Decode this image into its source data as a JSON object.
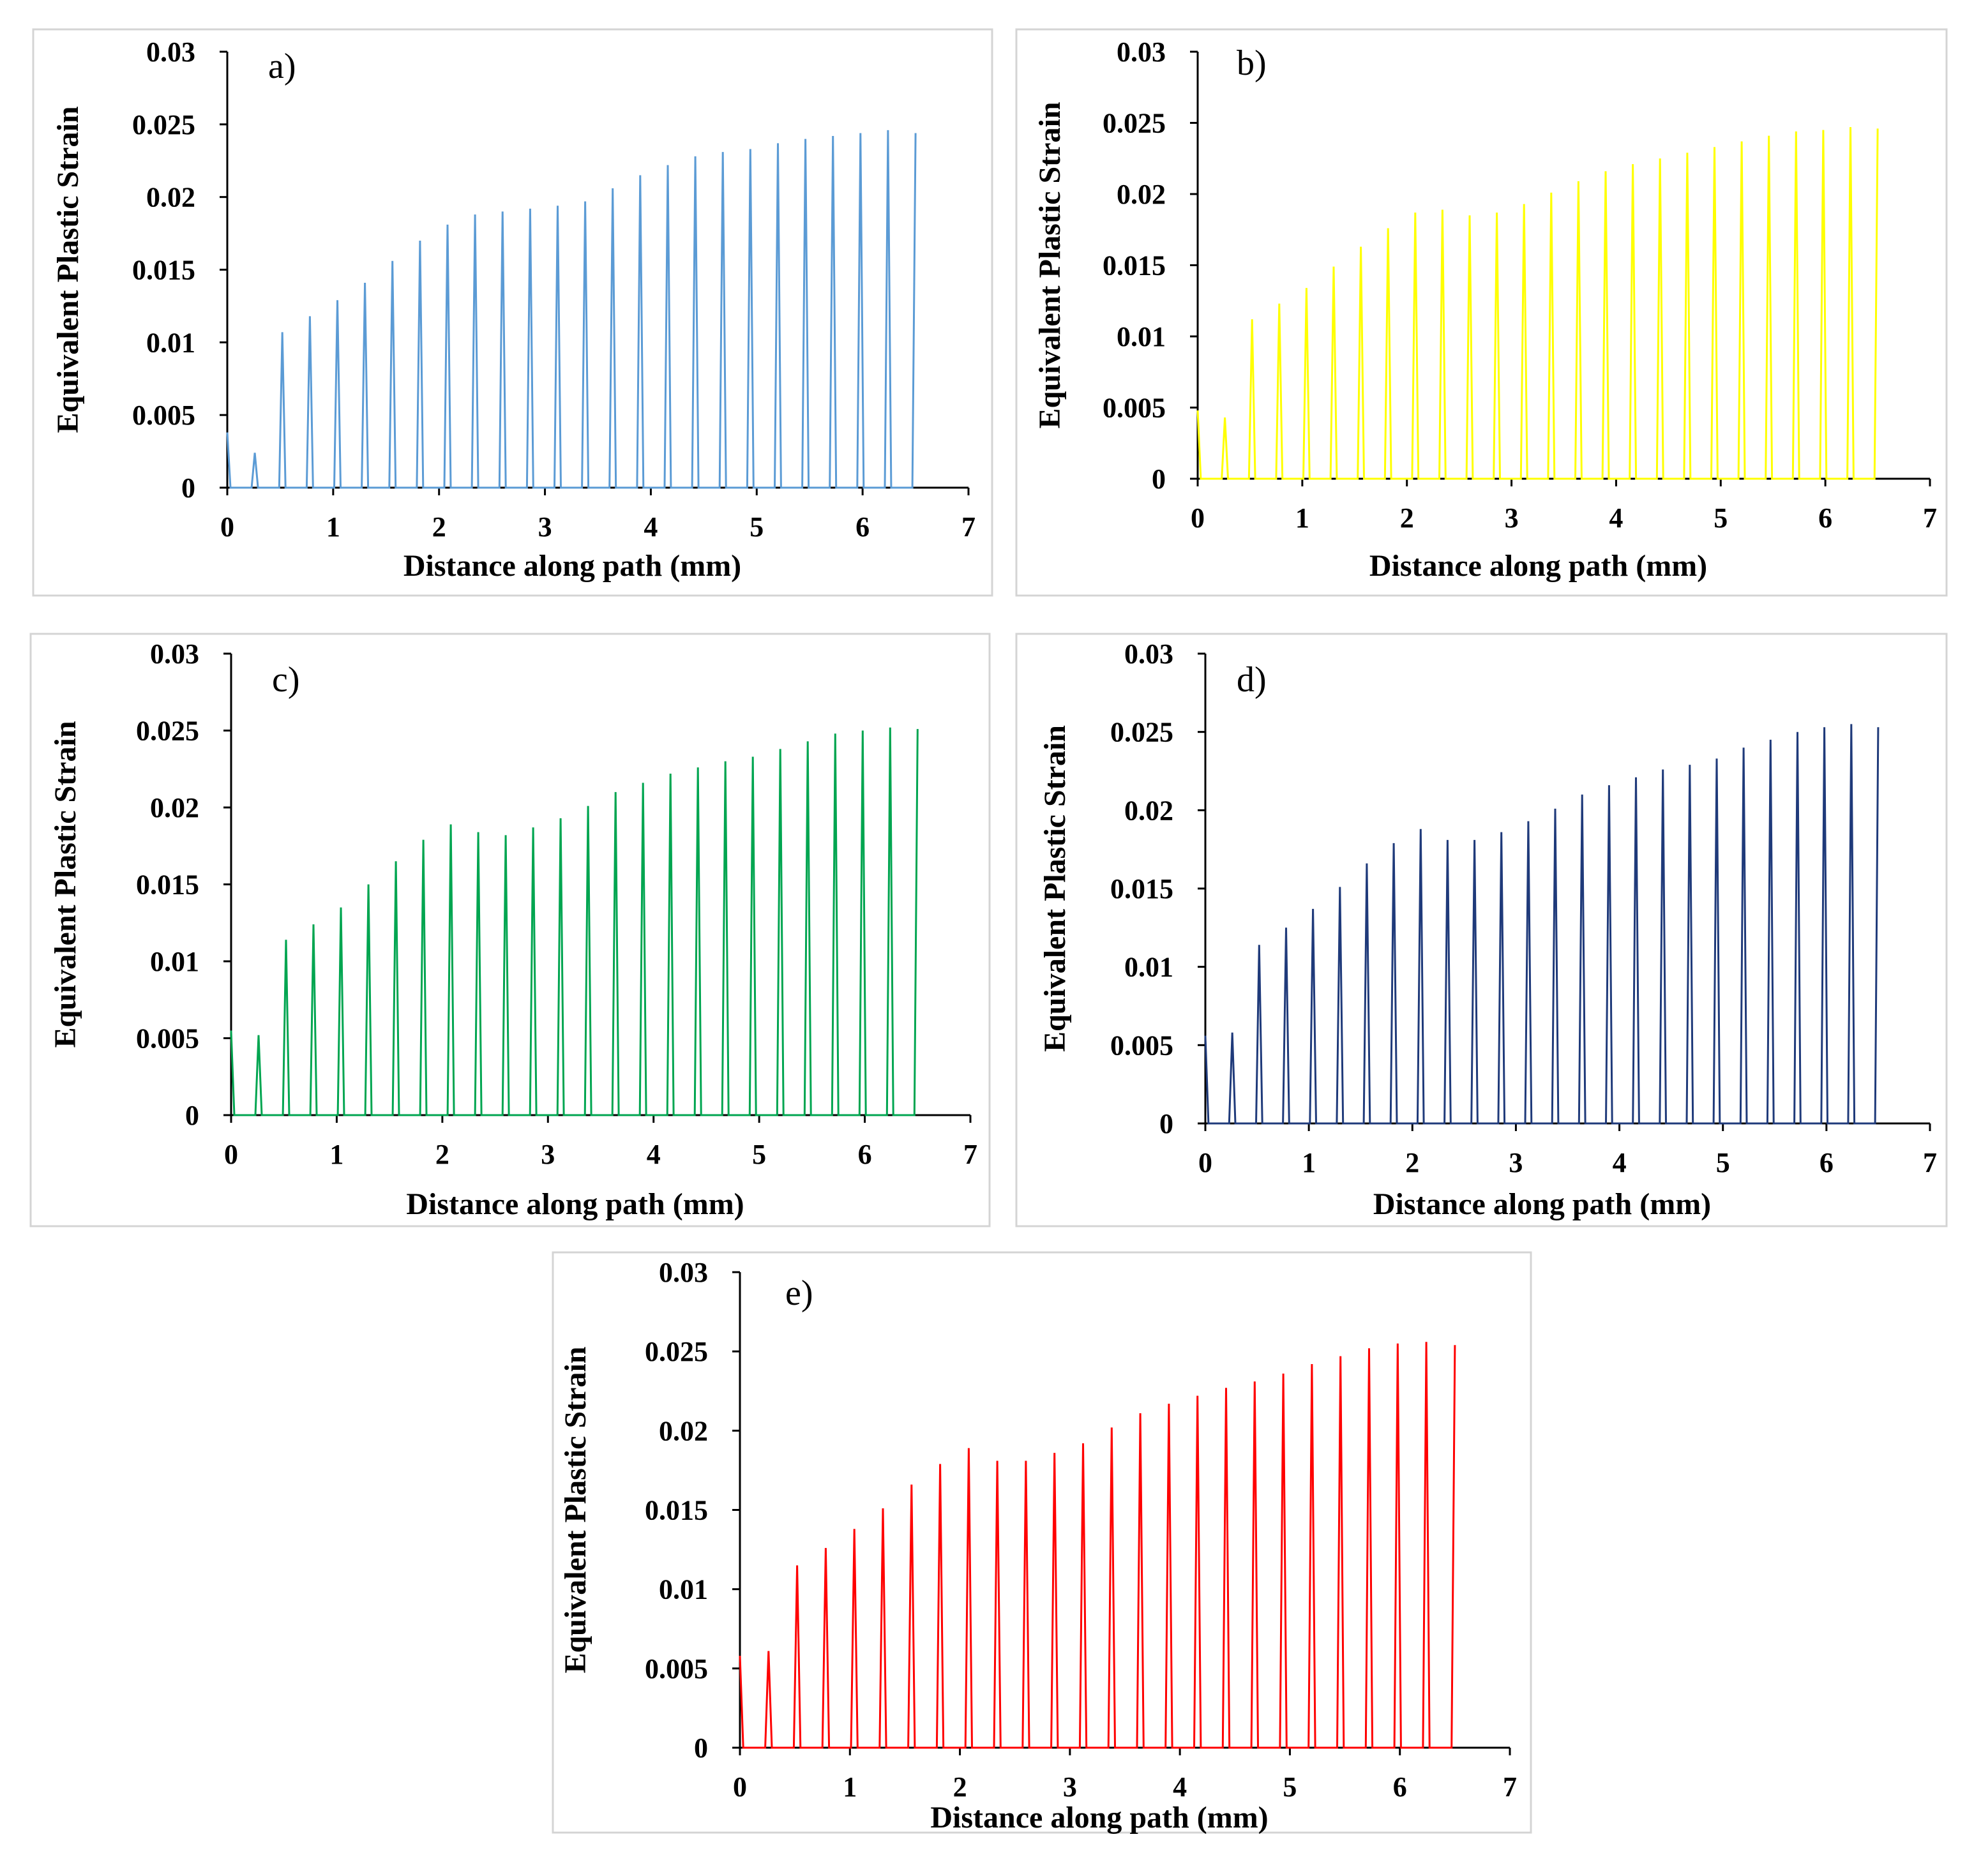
{
  "chart_data": [
    {
      "type": "line",
      "panel_label": "a)",
      "xlabel": "Distance along path (mm)",
      "ylabel": "Equivalent Plastic Strain",
      "xlim": [
        0,
        7
      ],
      "ylim": [
        0,
        0.03
      ],
      "xticks": [
        "0",
        "1",
        "2",
        "3",
        "4",
        "5",
        "6",
        "7"
      ],
      "yticks": [
        "0",
        "0.005",
        "0.01",
        "0.015",
        "0.02",
        "0.025",
        "0.03"
      ],
      "grid": false,
      "color": "#5b9bd5",
      "series": [
        {
          "x": [
            0,
            0.03,
            0.23,
            0.26,
            0.29,
            0.49,
            0.52,
            0.55,
            0.75,
            0.78,
            0.81,
            1.01,
            1.04,
            1.07,
            1.27,
            1.3,
            1.33,
            1.53,
            1.56,
            1.59,
            1.79,
            1.82,
            1.85,
            2.05,
            2.08,
            2.11,
            2.31,
            2.34,
            2.37,
            2.57,
            2.6,
            2.63,
            2.83,
            2.86,
            2.89,
            3.09,
            3.12,
            3.15,
            3.35,
            3.38,
            3.41,
            3.61,
            3.64,
            3.67,
            3.87,
            3.9,
            3.93,
            4.13,
            4.16,
            4.19,
            4.39,
            4.42,
            4.45,
            4.65,
            4.68,
            4.71,
            4.91,
            4.94,
            4.97,
            5.17,
            5.2,
            5.23,
            5.43,
            5.46,
            5.49,
            5.69,
            5.72,
            5.75,
            5.95,
            5.98,
            6.01,
            6.21,
            6.24,
            6.27,
            6.47,
            6.5
          ],
          "y": [
            0.0038,
            0,
            0,
            0.0024,
            0,
            0,
            0.0107,
            0,
            0,
            0.0118,
            0,
            0,
            0.0129,
            0,
            0,
            0.0141,
            0,
            0,
            0.0156,
            0,
            0,
            0.017,
            0,
            0,
            0.0181,
            0,
            0,
            0.0188,
            0,
            0,
            0.019,
            0,
            0,
            0.0192,
            0,
            0,
            0.0194,
            0,
            0,
            0.0197,
            0,
            0,
            0.0206,
            0,
            0,
            0.0215,
            0,
            0,
            0.0222,
            0,
            0,
            0.0228,
            0,
            0,
            0.0231,
            0,
            0,
            0.0233,
            0,
            0,
            0.0237,
            0,
            0,
            0.024,
            0,
            0,
            0.0242,
            0,
            0,
            0.0244,
            0,
            0,
            0.0246,
            0,
            0,
            0.0244
          ]
        }
      ]
    },
    {
      "type": "line",
      "panel_label": "b)",
      "xlabel": "Distance along path (mm)",
      "ylabel": "Equivalent Plastic Strain",
      "xlim": [
        0,
        7
      ],
      "ylim": [
        0,
        0.03
      ],
      "xticks": [
        "0",
        "1",
        "2",
        "3",
        "4",
        "5",
        "6",
        "7"
      ],
      "yticks": [
        "0",
        "0.005",
        "0.01",
        "0.015",
        "0.02",
        "0.025",
        "0.03"
      ],
      "grid": false,
      "color": "#ffff00",
      "series": [
        {
          "x": [
            0,
            0.03,
            0.23,
            0.26,
            0.29,
            0.49,
            0.52,
            0.55,
            0.75,
            0.78,
            0.81,
            1.01,
            1.04,
            1.07,
            1.27,
            1.3,
            1.33,
            1.53,
            1.56,
            1.59,
            1.79,
            1.82,
            1.85,
            2.05,
            2.08,
            2.11,
            2.31,
            2.34,
            2.37,
            2.57,
            2.6,
            2.63,
            2.83,
            2.86,
            2.89,
            3.09,
            3.12,
            3.15,
            3.35,
            3.38,
            3.41,
            3.61,
            3.64,
            3.67,
            3.87,
            3.9,
            3.93,
            4.13,
            4.16,
            4.19,
            4.39,
            4.42,
            4.45,
            4.65,
            4.68,
            4.71,
            4.91,
            4.94,
            4.97,
            5.17,
            5.2,
            5.23,
            5.43,
            5.46,
            5.49,
            5.69,
            5.72,
            5.75,
            5.95,
            5.98,
            6.01,
            6.21,
            6.24,
            6.27,
            6.47,
            6.5
          ],
          "y": [
            0.0048,
            0,
            0,
            0.0043,
            0,
            0,
            0.0112,
            0,
            0,
            0.0123,
            0,
            0,
            0.0134,
            0,
            0,
            0.0149,
            0,
            0,
            0.0163,
            0,
            0,
            0.0176,
            0,
            0,
            0.0187,
            0,
            0,
            0.0189,
            0,
            0,
            0.0185,
            0,
            0,
            0.0187,
            0,
            0,
            0.0193,
            0,
            0,
            0.0201,
            0,
            0,
            0.0209,
            0,
            0,
            0.0216,
            0,
            0,
            0.0221,
            0,
            0,
            0.0225,
            0,
            0,
            0.0229,
            0,
            0,
            0.0233,
            0,
            0,
            0.0237,
            0,
            0,
            0.0241,
            0,
            0,
            0.0244,
            0,
            0,
            0.0245,
            0,
            0,
            0.0247,
            0,
            0,
            0.0246
          ]
        }
      ]
    },
    {
      "type": "line",
      "panel_label": "c)",
      "xlabel": "Distance along path (mm)",
      "ylabel": "Equivalent Plastic Strain",
      "xlim": [
        0,
        7
      ],
      "ylim": [
        0,
        0.03
      ],
      "xticks": [
        "0",
        "1",
        "2",
        "3",
        "4",
        "5",
        "6",
        "7"
      ],
      "yticks": [
        "0",
        "0.005",
        "0.01",
        "0.015",
        "0.02",
        "0.025",
        "0.03"
      ],
      "grid": false,
      "color": "#00a550",
      "series": [
        {
          "x": [
            0,
            0.03,
            0.23,
            0.26,
            0.29,
            0.49,
            0.52,
            0.55,
            0.75,
            0.78,
            0.81,
            1.01,
            1.04,
            1.07,
            1.27,
            1.3,
            1.33,
            1.53,
            1.56,
            1.59,
            1.79,
            1.82,
            1.85,
            2.05,
            2.08,
            2.11,
            2.31,
            2.34,
            2.37,
            2.57,
            2.6,
            2.63,
            2.83,
            2.86,
            2.89,
            3.09,
            3.12,
            3.15,
            3.35,
            3.38,
            3.41,
            3.61,
            3.64,
            3.67,
            3.87,
            3.9,
            3.93,
            4.13,
            4.16,
            4.19,
            4.39,
            4.42,
            4.45,
            4.65,
            4.68,
            4.71,
            4.91,
            4.94,
            4.97,
            5.17,
            5.2,
            5.23,
            5.43,
            5.46,
            5.49,
            5.69,
            5.72,
            5.75,
            5.95,
            5.98,
            6.01,
            6.21,
            6.24,
            6.27,
            6.47,
            6.5
          ],
          "y": [
            0.0055,
            0,
            0,
            0.0052,
            0,
            0,
            0.0114,
            0,
            0,
            0.0124,
            0,
            0,
            0.0135,
            0,
            0,
            0.015,
            0,
            0,
            0.0165,
            0,
            0,
            0.0179,
            0,
            0,
            0.0189,
            0,
            0,
            0.0184,
            0,
            0,
            0.0182,
            0,
            0,
            0.0187,
            0,
            0,
            0.0193,
            0,
            0,
            0.0201,
            0,
            0,
            0.021,
            0,
            0,
            0.0216,
            0,
            0,
            0.0222,
            0,
            0,
            0.0226,
            0,
            0,
            0.023,
            0,
            0,
            0.0233,
            0,
            0,
            0.0238,
            0,
            0,
            0.0243,
            0,
            0,
            0.0248,
            0,
            0,
            0.025,
            0,
            0,
            0.0252,
            0,
            0,
            0.0251
          ]
        }
      ]
    },
    {
      "type": "line",
      "panel_label": "d)",
      "xlabel": "Distance along path (mm)",
      "ylabel": "Equivalent Plastic Strain",
      "xlim": [
        0,
        7
      ],
      "ylim": [
        0,
        0.03
      ],
      "xticks": [
        "0",
        "1",
        "2",
        "3",
        "4",
        "5",
        "6",
        "7"
      ],
      "yticks": [
        "0",
        "0.005",
        "0.01",
        "0.015",
        "0.02",
        "0.025",
        "0.03"
      ],
      "grid": false,
      "color": "#1f3a7a",
      "series": [
        {
          "x": [
            0,
            0.03,
            0.23,
            0.26,
            0.29,
            0.49,
            0.52,
            0.55,
            0.75,
            0.78,
            0.81,
            1.01,
            1.04,
            1.07,
            1.27,
            1.3,
            1.33,
            1.53,
            1.56,
            1.59,
            1.79,
            1.82,
            1.85,
            2.05,
            2.08,
            2.11,
            2.31,
            2.34,
            2.37,
            2.57,
            2.6,
            2.63,
            2.83,
            2.86,
            2.89,
            3.09,
            3.12,
            3.15,
            3.35,
            3.38,
            3.41,
            3.61,
            3.64,
            3.67,
            3.87,
            3.9,
            3.93,
            4.13,
            4.16,
            4.19,
            4.39,
            4.42,
            4.45,
            4.65,
            4.68,
            4.71,
            4.91,
            4.94,
            4.97,
            5.17,
            5.2,
            5.23,
            5.43,
            5.46,
            5.49,
            5.69,
            5.72,
            5.75,
            5.95,
            5.98,
            6.01,
            6.21,
            6.24,
            6.27,
            6.47,
            6.5
          ],
          "y": [
            0.0056,
            0,
            0,
            0.0058,
            0,
            0,
            0.0114,
            0,
            0,
            0.0125,
            0,
            0,
            0.0137,
            0,
            0,
            0.0151,
            0,
            0,
            0.0166,
            0,
            0,
            0.0179,
            0,
            0,
            0.0188,
            0,
            0,
            0.0181,
            0,
            0,
            0.0181,
            0,
            0,
            0.0186,
            0,
            0,
            0.0193,
            0,
            0,
            0.0201,
            0,
            0,
            0.021,
            0,
            0,
            0.0216,
            0,
            0,
            0.0221,
            0,
            0,
            0.0226,
            0,
            0,
            0.0229,
            0,
            0,
            0.0233,
            0,
            0,
            0.024,
            0,
            0,
            0.0245,
            0,
            0,
            0.025,
            0,
            0,
            0.0253,
            0,
            0,
            0.0255,
            0,
            0,
            0.0253
          ]
        }
      ]
    },
    {
      "type": "line",
      "panel_label": "e)",
      "xlabel": "Distance along path (mm)",
      "ylabel": "Equivalent Plastic Strain",
      "xlim": [
        0,
        7
      ],
      "ylim": [
        0,
        0.03
      ],
      "xticks": [
        "0",
        "1",
        "2",
        "3",
        "4",
        "5",
        "6",
        "7"
      ],
      "yticks": [
        "0",
        "0.005",
        "0.01",
        "0.015",
        "0.02",
        "0.025",
        "0.03"
      ],
      "grid": false,
      "color": "#ff0000",
      "series": [
        {
          "x": [
            0,
            0.03,
            0.23,
            0.26,
            0.29,
            0.49,
            0.52,
            0.55,
            0.75,
            0.78,
            0.81,
            1.01,
            1.04,
            1.07,
            1.27,
            1.3,
            1.33,
            1.53,
            1.56,
            1.59,
            1.79,
            1.82,
            1.85,
            2.05,
            2.08,
            2.11,
            2.31,
            2.34,
            2.37,
            2.57,
            2.6,
            2.63,
            2.83,
            2.86,
            2.89,
            3.09,
            3.12,
            3.15,
            3.35,
            3.38,
            3.41,
            3.61,
            3.64,
            3.67,
            3.87,
            3.9,
            3.93,
            4.13,
            4.16,
            4.19,
            4.39,
            4.42,
            4.45,
            4.65,
            4.68,
            4.71,
            4.91,
            4.94,
            4.97,
            5.17,
            5.2,
            5.23,
            5.43,
            5.46,
            5.49,
            5.69,
            5.72,
            5.75,
            5.95,
            5.98,
            6.01,
            6.21,
            6.24,
            6.27,
            6.47,
            6.5
          ],
          "y": [
            0.0058,
            0,
            0,
            0.0061,
            0,
            0,
            0.0115,
            0,
            0,
            0.0126,
            0,
            0,
            0.0138,
            0,
            0,
            0.0151,
            0,
            0,
            0.0166,
            0,
            0,
            0.0179,
            0,
            0,
            0.0189,
            0,
            0,
            0.0181,
            0,
            0,
            0.0181,
            0,
            0,
            0.0186,
            0,
            0,
            0.0192,
            0,
            0,
            0.0202,
            0,
            0,
            0.0211,
            0,
            0,
            0.0217,
            0,
            0,
            0.0222,
            0,
            0,
            0.0227,
            0,
            0,
            0.0231,
            0,
            0,
            0.0236,
            0,
            0,
            0.0242,
            0,
            0,
            0.0247,
            0,
            0,
            0.0252,
            0,
            0,
            0.0255,
            0,
            0,
            0.0256,
            0,
            0,
            0.0254
          ]
        }
      ]
    }
  ]
}
